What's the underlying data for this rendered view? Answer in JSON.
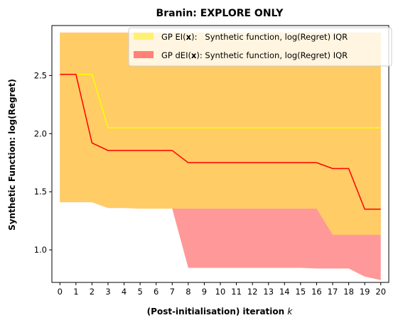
{
  "chart_data": {
    "type": "line",
    "title": "Branin: EXPLORE ONLY",
    "xlabel": "(Post-initialisation) iteration",
    "xlabel_var": "k",
    "ylabel": "Synthetic Function: log(Regret)",
    "xlim": [
      -0.5,
      20.5
    ],
    "ylim": [
      0.72,
      2.93
    ],
    "x_ticks": [
      0,
      1,
      2,
      3,
      4,
      5,
      6,
      7,
      8,
      9,
      10,
      11,
      12,
      13,
      14,
      15,
      16,
      17,
      18,
      19,
      20
    ],
    "y_ticks": [
      "1.0",
      "1.5",
      "2.0",
      "2.5"
    ],
    "y_tick_values": [
      1.0,
      1.5,
      2.0,
      2.5
    ],
    "x": [
      0,
      1,
      2,
      3,
      4,
      5,
      6,
      7,
      8,
      9,
      10,
      11,
      12,
      13,
      14,
      15,
      16,
      17,
      18,
      19,
      20
    ],
    "legend_position": "upper right",
    "series": [
      {
        "name_prefix": "GP EI(",
        "name_bold": "x",
        "name_suffix": "):   Synthetic function, log(Regret) IQR",
        "line_color": "#ffff00",
        "band_color": "#ffee44",
        "band_opacity": 0.6,
        "median": [
          2.51,
          2.51,
          2.51,
          2.05,
          2.05,
          2.05,
          2.05,
          2.05,
          2.05,
          2.05,
          2.05,
          2.05,
          2.05,
          2.05,
          2.05,
          2.05,
          2.05,
          2.05,
          2.05,
          2.05,
          2.05
        ],
        "lower": [
          1.41,
          1.41,
          1.41,
          1.36,
          1.36,
          1.355,
          1.355,
          1.355,
          1.355,
          1.355,
          1.355,
          1.355,
          1.355,
          1.355,
          1.355,
          1.355,
          1.355,
          1.13,
          1.13,
          1.13,
          1.13
        ],
        "upper": [
          2.87,
          2.87,
          2.87,
          2.87,
          2.87,
          2.87,
          2.87,
          2.87,
          2.87,
          2.87,
          2.87,
          2.87,
          2.87,
          2.87,
          2.87,
          2.87,
          2.87,
          2.87,
          2.87,
          2.87,
          2.87
        ]
      },
      {
        "name_prefix": "GP dEI(",
        "name_bold": "x",
        "name_suffix": "): Synthetic function, log(Regret) IQR",
        "line_color": "#ff0000",
        "band_color": "#ff3333",
        "band_opacity": 0.5,
        "median": [
          2.51,
          2.51,
          1.92,
          1.855,
          1.855,
          1.855,
          1.855,
          1.855,
          1.75,
          1.75,
          1.75,
          1.75,
          1.75,
          1.75,
          1.75,
          1.75,
          1.75,
          1.7,
          1.7,
          1.35,
          1.35
        ],
        "lower": [
          1.41,
          1.41,
          1.41,
          1.36,
          1.36,
          1.355,
          1.355,
          1.355,
          0.845,
          0.845,
          0.845,
          0.845,
          0.845,
          0.845,
          0.845,
          0.845,
          0.84,
          0.84,
          0.84,
          0.77,
          0.74
        ],
        "upper": [
          2.87,
          2.87,
          2.87,
          2.87,
          2.87,
          2.87,
          2.87,
          2.87,
          2.87,
          2.87,
          2.87,
          2.87,
          2.87,
          2.87,
          2.87,
          2.87,
          2.87,
          2.87,
          2.87,
          2.87,
          2.87
        ]
      }
    ]
  }
}
